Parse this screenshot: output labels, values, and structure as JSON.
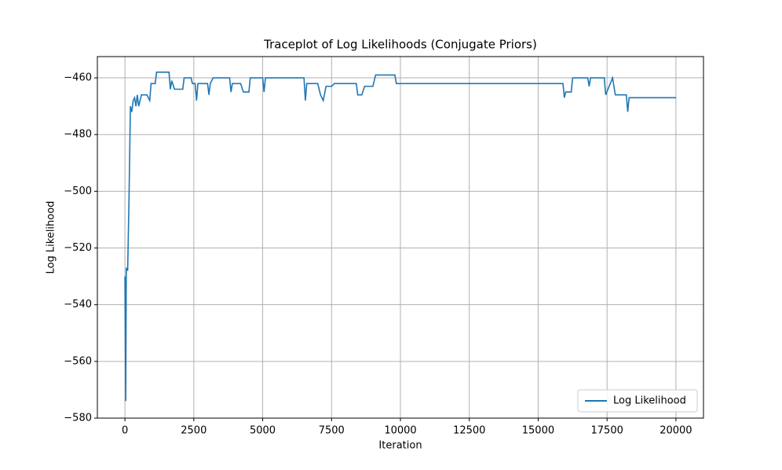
{
  "chart_data": {
    "type": "line",
    "title": "Traceplot of Log Likelihoods (Conjugate Priors)",
    "x_label": "Iteration",
    "y_label": "Log Likelihood",
    "x": [
      0,
      30,
      50,
      100,
      150,
      200,
      250,
      300,
      350,
      400,
      450,
      500,
      600,
      800,
      900,
      950,
      1100,
      1150,
      1600,
      1650,
      1700,
      1800,
      2100,
      2150,
      2400,
      2450,
      2550,
      2600,
      2650,
      3000,
      3050,
      3100,
      3200,
      3800,
      3850,
      3900,
      4200,
      4300,
      4500,
      4550,
      5000,
      5050,
      5100,
      6500,
      6550,
      6600,
      7000,
      7100,
      7200,
      7300,
      7500,
      7600,
      8400,
      8450,
      8600,
      8700,
      9000,
      9100,
      9800,
      9850,
      15900,
      15950,
      16000,
      16200,
      16250,
      16800,
      16850,
      16900,
      17400,
      17450,
      17700,
      17800,
      18200,
      18250,
      18300,
      20000
    ],
    "series": [
      {
        "name": "Log Likelihood",
        "color": "#1f77b4",
        "values": [
          -530,
          -574,
          -527,
          -528,
          -502,
          -470,
          -472,
          -468,
          -467,
          -470,
          -466,
          -470,
          -466,
          -466,
          -468,
          -462,
          -462,
          -458,
          -458,
          -464,
          -461,
          -464,
          -464,
          -460,
          -460,
          -462,
          -462,
          -468,
          -462,
          -462,
          -466,
          -462,
          -460,
          -460,
          -465,
          -462,
          -462,
          -465,
          -465,
          -460,
          -460,
          -465,
          -460,
          -460,
          -468,
          -462,
          -462,
          -466,
          -468,
          -463,
          -463,
          -462,
          -462,
          -466,
          -466,
          -463,
          -463,
          -459,
          -459,
          -462,
          -462,
          -467,
          -465,
          -465,
          -460,
          -460,
          -463,
          -460,
          -460,
          -466,
          -460,
          -466,
          -466,
          -472,
          -467,
          -467
        ]
      }
    ],
    "xlim": [
      -1000,
      21000
    ],
    "ylim": [
      -580,
      -452.5
    ],
    "xticks": [
      0,
      2500,
      5000,
      7500,
      10000,
      12500,
      15000,
      17500,
      20000
    ],
    "yticks": [
      {
        "value": -580,
        "label": "−580"
      },
      {
        "value": -560,
        "label": "−560"
      },
      {
        "value": -540,
        "label": "−540"
      },
      {
        "value": -520,
        "label": "−520"
      },
      {
        "value": -500,
        "label": "−500"
      },
      {
        "value": -480,
        "label": "−480"
      },
      {
        "value": -460,
        "label": "−460"
      }
    ],
    "grid": true,
    "legend": "lower right"
  }
}
